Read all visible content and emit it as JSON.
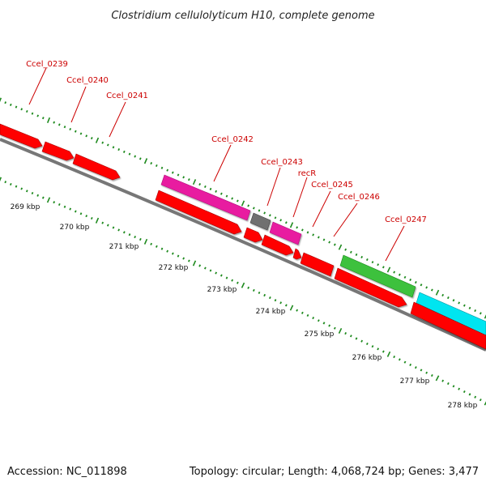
{
  "title": "Clostridium cellulolyticum H10, complete genome",
  "footer": {
    "accession": "Accession: NC_011898",
    "summary": "Topology: circular; Length: 4,068,724 bp; Genes: 3,477"
  },
  "colors": {
    "backbone": "#808080",
    "cds": "#ff0000",
    "gene_pink": "#e81ea0",
    "gene_gray": "#707070",
    "gene_green": "#3cc13c",
    "gene_cyan": "#00e5f0",
    "label": "#cc0000",
    "tick": "#1e8a1e"
  },
  "gene_labels": [
    {
      "name": "Ccel_0239"
    },
    {
      "name": "Ccel_0240"
    },
    {
      "name": "Ccel_0241"
    },
    {
      "name": "Ccel_0242"
    },
    {
      "name": "Ccel_0243"
    },
    {
      "name": "recR"
    },
    {
      "name": "Ccel_0245"
    },
    {
      "name": "Ccel_0246"
    },
    {
      "name": "Ccel_0247"
    }
  ],
  "kbp_labels": [
    "269 kbp",
    "270 kbp",
    "271 kbp",
    "272 kbp",
    "273 kbp",
    "274 kbp",
    "275 kbp",
    "276 kbp",
    "277 kbp",
    "278 kbp"
  ]
}
